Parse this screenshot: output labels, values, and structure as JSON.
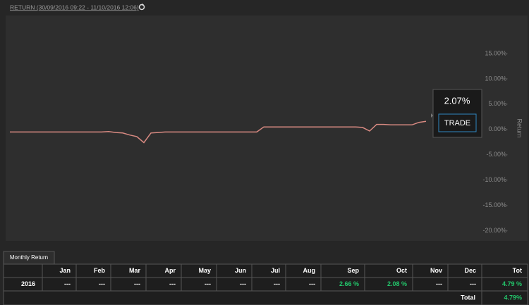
{
  "header": {
    "title": "RETURN (30/09/2016 09:22 - 11/10/2016 12:06)"
  },
  "chart_data": {
    "type": "line",
    "color": "#d98a82",
    "values": [
      -0.5,
      -0.5,
      -0.5,
      -0.5,
      -0.5,
      -0.5,
      -0.5,
      -0.5,
      -0.5,
      -0.5,
      -0.5,
      -0.5,
      -0.5,
      -0.5,
      -0.4,
      -0.6,
      -0.7,
      -1.1,
      -1.4,
      -2.6,
      -0.7,
      -0.6,
      -0.5,
      -0.5,
      -0.5,
      -0.5,
      -0.5,
      -0.5,
      -0.5,
      -0.5,
      -0.5,
      -0.5,
      -0.5,
      -0.5,
      -0.5,
      -0.5,
      0.5,
      0.5,
      0.5,
      0.5,
      0.5,
      0.5,
      0.5,
      0.5,
      0.5,
      0.5,
      0.5,
      0.5,
      0.5,
      0.5,
      0.4,
      -0.3,
      1.0,
      1.0,
      0.9,
      0.9,
      0.9,
      0.9,
      1.4,
      1.6
    ],
    "ylabel": "Return",
    "ylim": [
      -22,
      22.5
    ],
    "yticks": [
      {
        "value": 15,
        "label": "15.00%"
      },
      {
        "value": 10,
        "label": "10.00%"
      },
      {
        "value": 5,
        "label": "5.00%"
      },
      {
        "value": 0,
        "label": "0.00%"
      },
      {
        "value": -5,
        "label": "-5.00%"
      },
      {
        "value": -10,
        "label": "-10.00%"
      },
      {
        "value": -15,
        "label": "-15.00%"
      },
      {
        "value": -20,
        "label": "-20.00%"
      }
    ]
  },
  "tooltip": {
    "value": "2.07%",
    "button": "TRADE"
  },
  "table": {
    "tab": "Monthly Return",
    "columns": [
      "Jan",
      "Feb",
      "Mar",
      "Apr",
      "May",
      "Jun",
      "Jul",
      "Aug",
      "Sep",
      "Oct",
      "Nov",
      "Dec",
      "Tot"
    ],
    "rows": [
      [
        "2016",
        "---",
        "---",
        "---",
        "---",
        "---",
        "---",
        "---",
        "---",
        "2.66 %",
        "2.08 %",
        "---",
        "---",
        "4.79 %"
      ]
    ],
    "total": [
      "Total",
      "4.79%"
    ]
  }
}
